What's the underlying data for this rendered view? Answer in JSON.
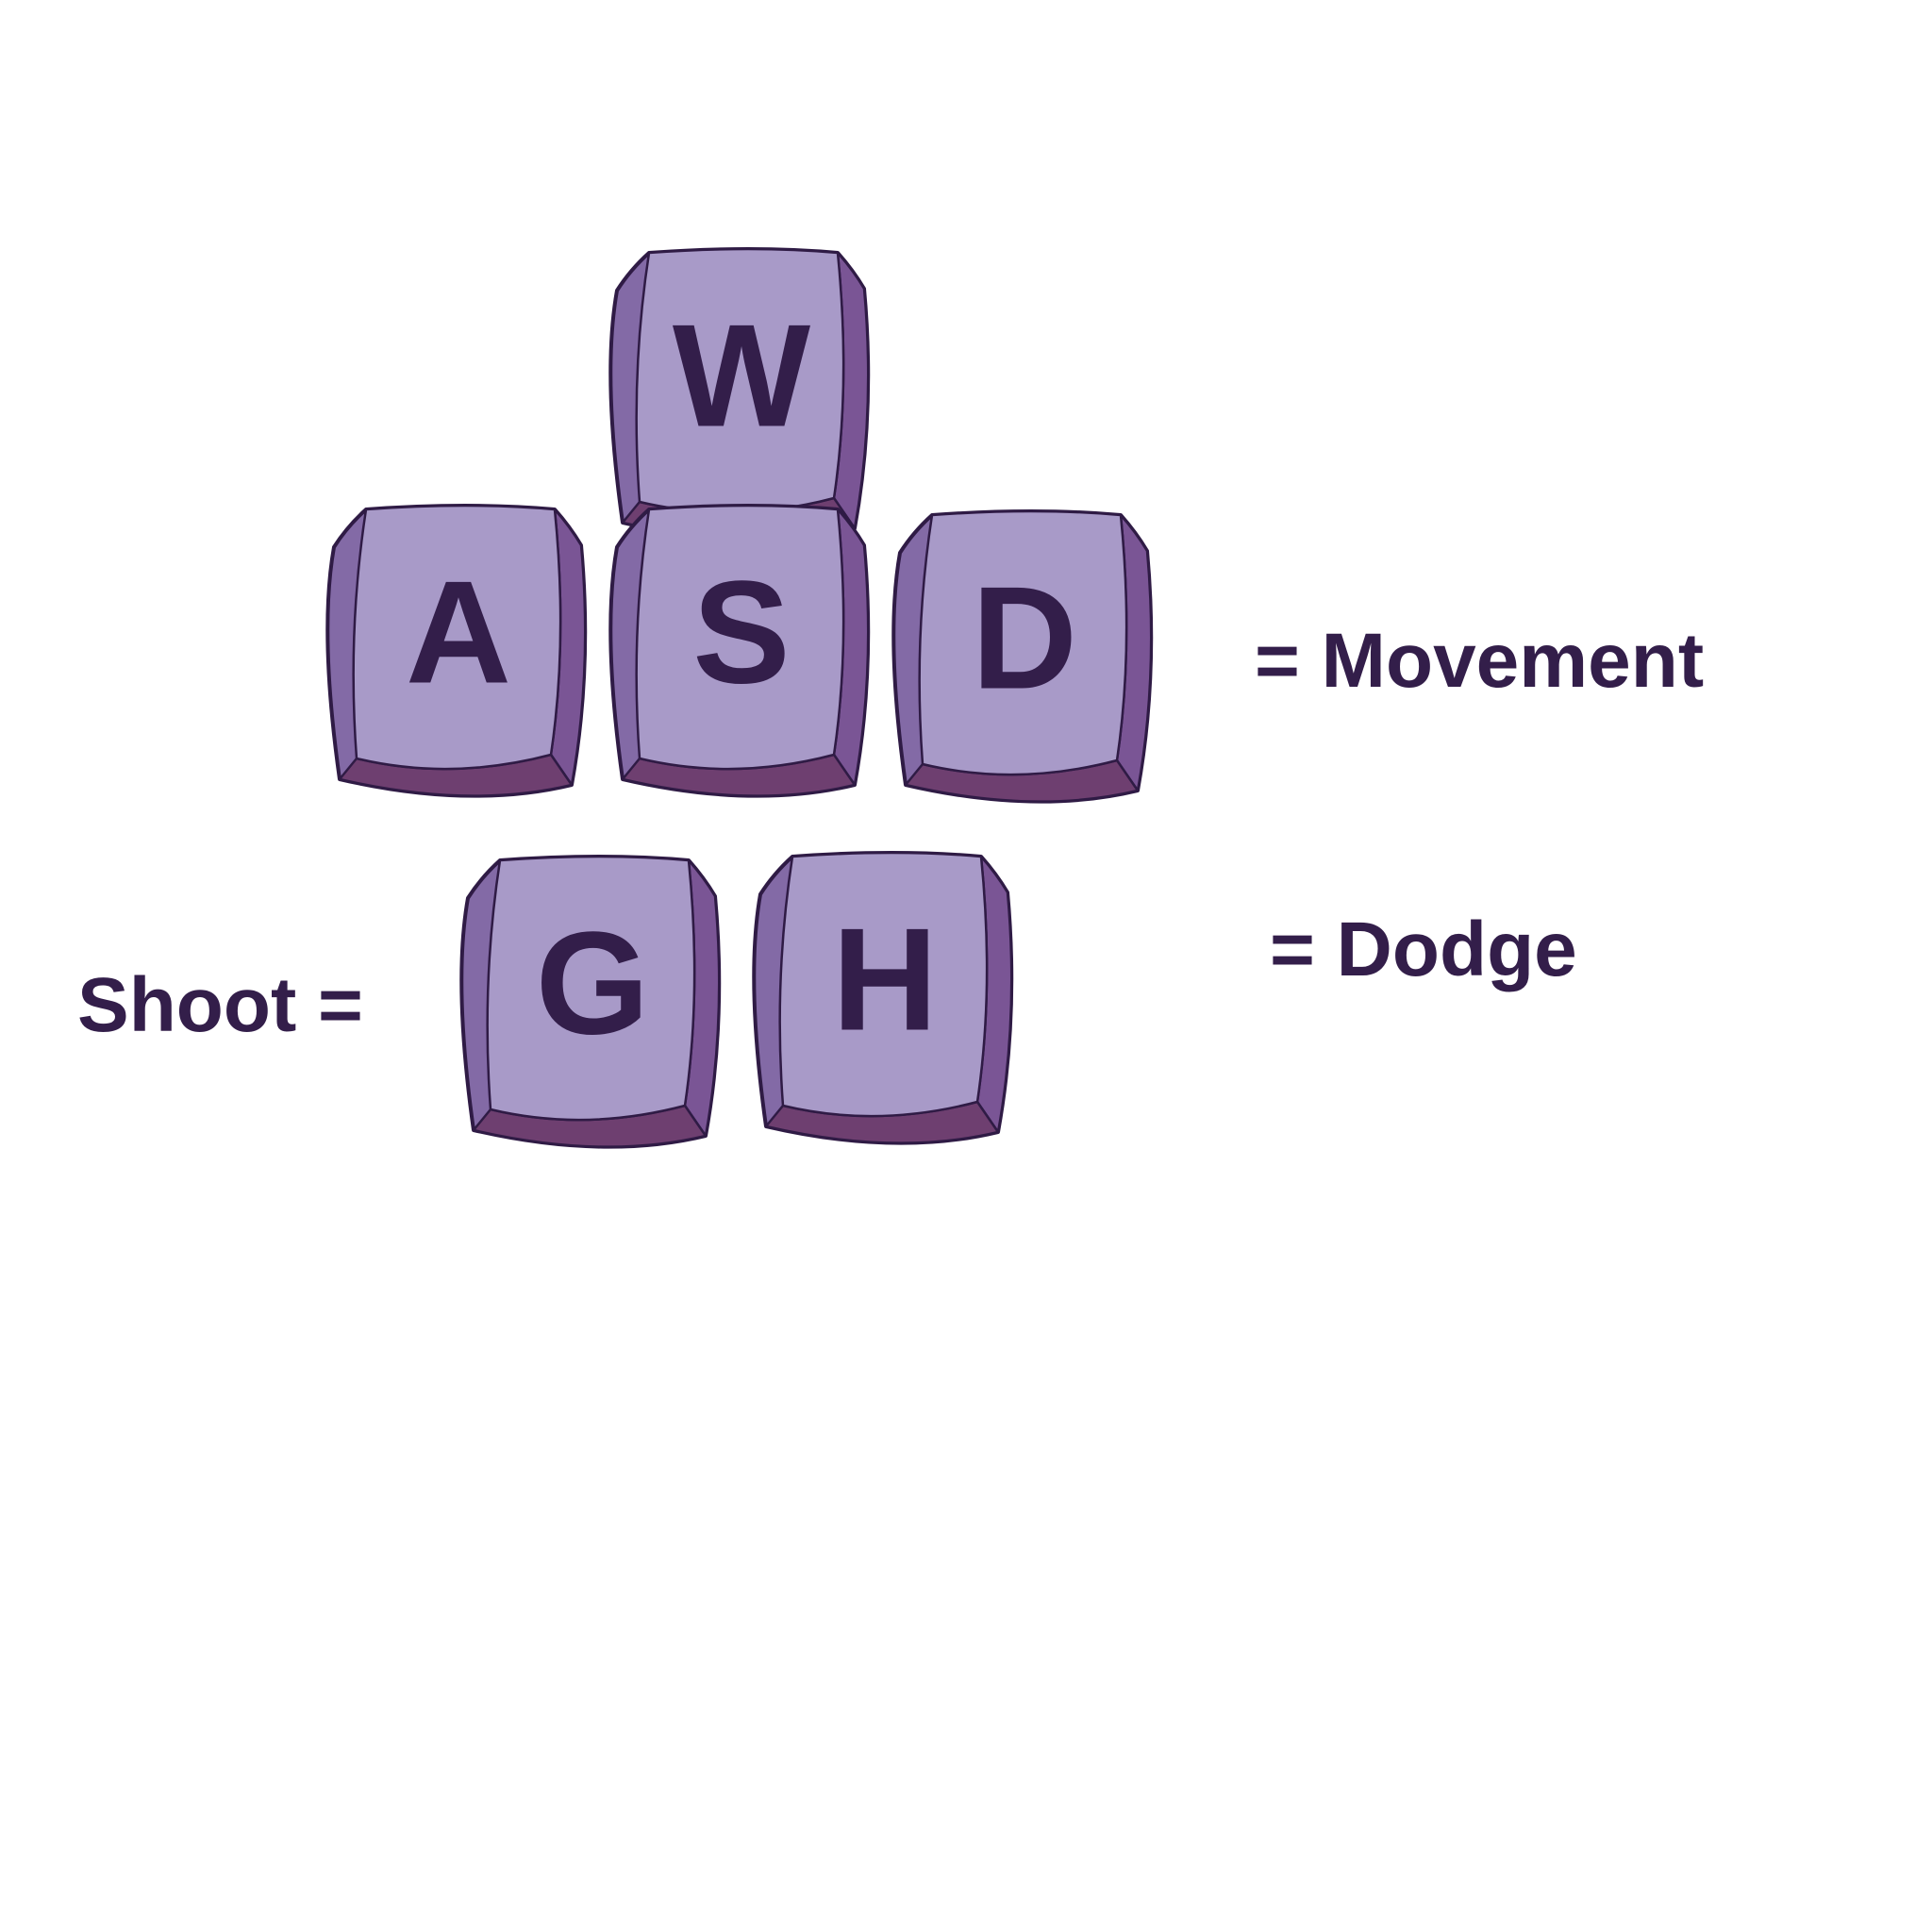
{
  "colors": {
    "background": "#ffffff",
    "key_top": "#a89ac8",
    "key_side": "#836aa6",
    "key_side_right": "#7a5595",
    "key_bottom": "#6e3f70",
    "outline": "#2f1b45",
    "text": "#331e4a"
  },
  "keys": [
    {
      "id": "w",
      "letter": "W"
    },
    {
      "id": "a",
      "letter": "A"
    },
    {
      "id": "s",
      "letter": "S"
    },
    {
      "id": "d",
      "letter": "D"
    },
    {
      "id": "g",
      "letter": "G"
    },
    {
      "id": "h",
      "letter": "H"
    }
  ],
  "labels": {
    "movement": "= Movement",
    "dodge": "= Dodge",
    "shoot": "Shoot ="
  }
}
